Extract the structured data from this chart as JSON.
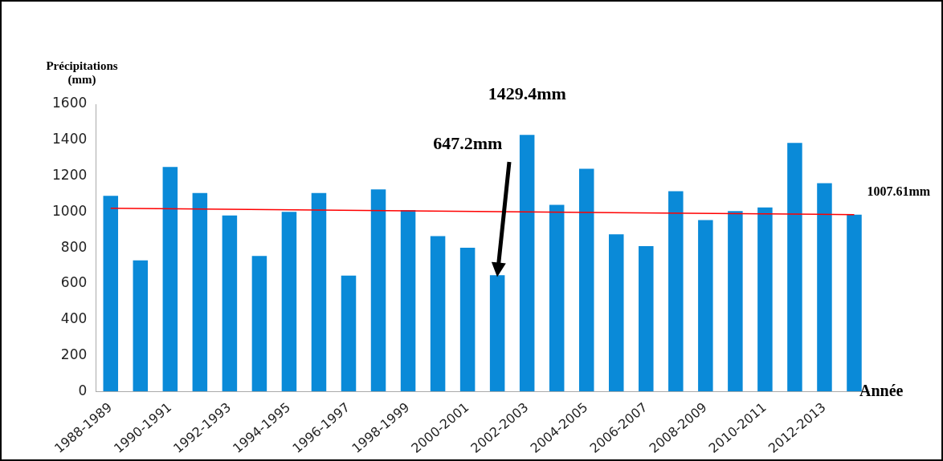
{
  "chart_data": {
    "type": "bar",
    "ylabel": "Précipitations (mm)",
    "xlabel": "Année",
    "categories": [
      "1988-1989",
      null,
      "1990-1991",
      null,
      "1992-1993",
      null,
      "1994-1995",
      null,
      "1996-1997",
      null,
      "1998-1999",
      null,
      "2000-2001",
      null,
      "2002-2003",
      null,
      "2004-2005",
      null,
      "2006-2007",
      null,
      "2008-2009",
      null,
      "2010-2011",
      null,
      "2012-2013",
      null
    ],
    "series": [
      {
        "color": "#0a8ad8",
        "values": [
          1090,
          730,
          1250,
          1105,
          980,
          755,
          1000,
          1105,
          645,
          1125,
          1010,
          865,
          800,
          647.2,
          1429.4,
          1040,
          1240,
          875,
          810,
          1115,
          955,
          1005,
          1025,
          1385,
          1160,
          985
        ]
      },
      {
        "type": "line",
        "color": "#ff0000",
        "values": [
          1020,
          null,
          null,
          null,
          null,
          null,
          null,
          null,
          null,
          null,
          null,
          null,
          null,
          null,
          null,
          null,
          null,
          null,
          null,
          null,
          null,
          null,
          null,
          null,
          null,
          985
        ]
      }
    ],
    "ylim": [
      0,
      1600
    ],
    "yticks": [
      0,
      200,
      400,
      600,
      800,
      1000,
      1200,
      1400,
      1600
    ],
    "grid": false,
    "legend": false,
    "marker": "none",
    "annotations": [
      {
        "text": "1429.4mm",
        "x": "2002-2003",
        "y": 1429.4
      },
      "647.2mm",
      "1007.61mm"
    ]
  }
}
